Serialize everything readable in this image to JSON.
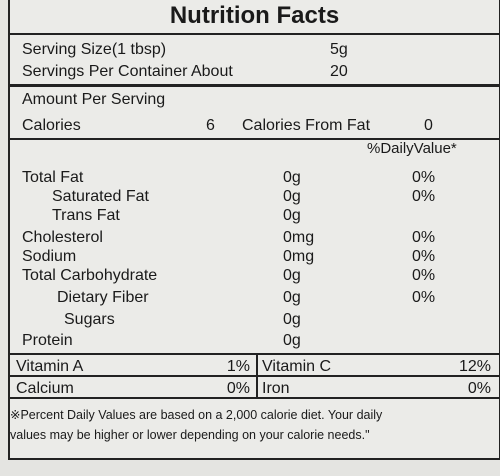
{
  "title": "Nutrition Facts",
  "serving": [
    {
      "label": "Serving Size(1 tbsp)",
      "value": "5g"
    },
    {
      "label": "Servings Per Container About",
      "value": "20"
    }
  ],
  "amount_header": "Amount Per Serving",
  "calories": {
    "label": "Calories",
    "value": "6",
    "fat_label": "Calories From Fat",
    "fat_value": "0"
  },
  "dv_header": "%DailyValue*",
  "nutrients": [
    {
      "name": "Total Fat",
      "amount": "0g",
      "dv": "0%"
    },
    {
      "name": "Saturated Fat",
      "amount": "0g",
      "dv": "0%"
    },
    {
      "name": "Trans Fat",
      "amount": "0g"
    },
    {
      "name": "Cholesterol",
      "amount": "0mg",
      "dv": "0%"
    },
    {
      "name": "Sodium",
      "amount": "0mg",
      "dv": "0%"
    },
    {
      "name": "Total Carbohydrate",
      "amount": "0g",
      "dv": "0%"
    },
    {
      "name": "Dietary Fiber",
      "amount": "0g",
      "dv": "0%"
    },
    {
      "name": "Sugars",
      "amount": "0g"
    },
    {
      "name": "Protein",
      "amount": "0g"
    }
  ],
  "vitamins": [
    {
      "name": "Vitamin A",
      "dv": "1%"
    },
    {
      "name": "Vitamin C",
      "dv": "12%"
    },
    {
      "name": "Calcium",
      "dv": "0%"
    },
    {
      "name": "Iron",
      "dv": "0%"
    }
  ],
  "footnote": [
    "※Percent Daily Values are based on a 2,000 calorie diet. Your daily",
    "values may be higher or lower depending on your calorie needs.\""
  ]
}
